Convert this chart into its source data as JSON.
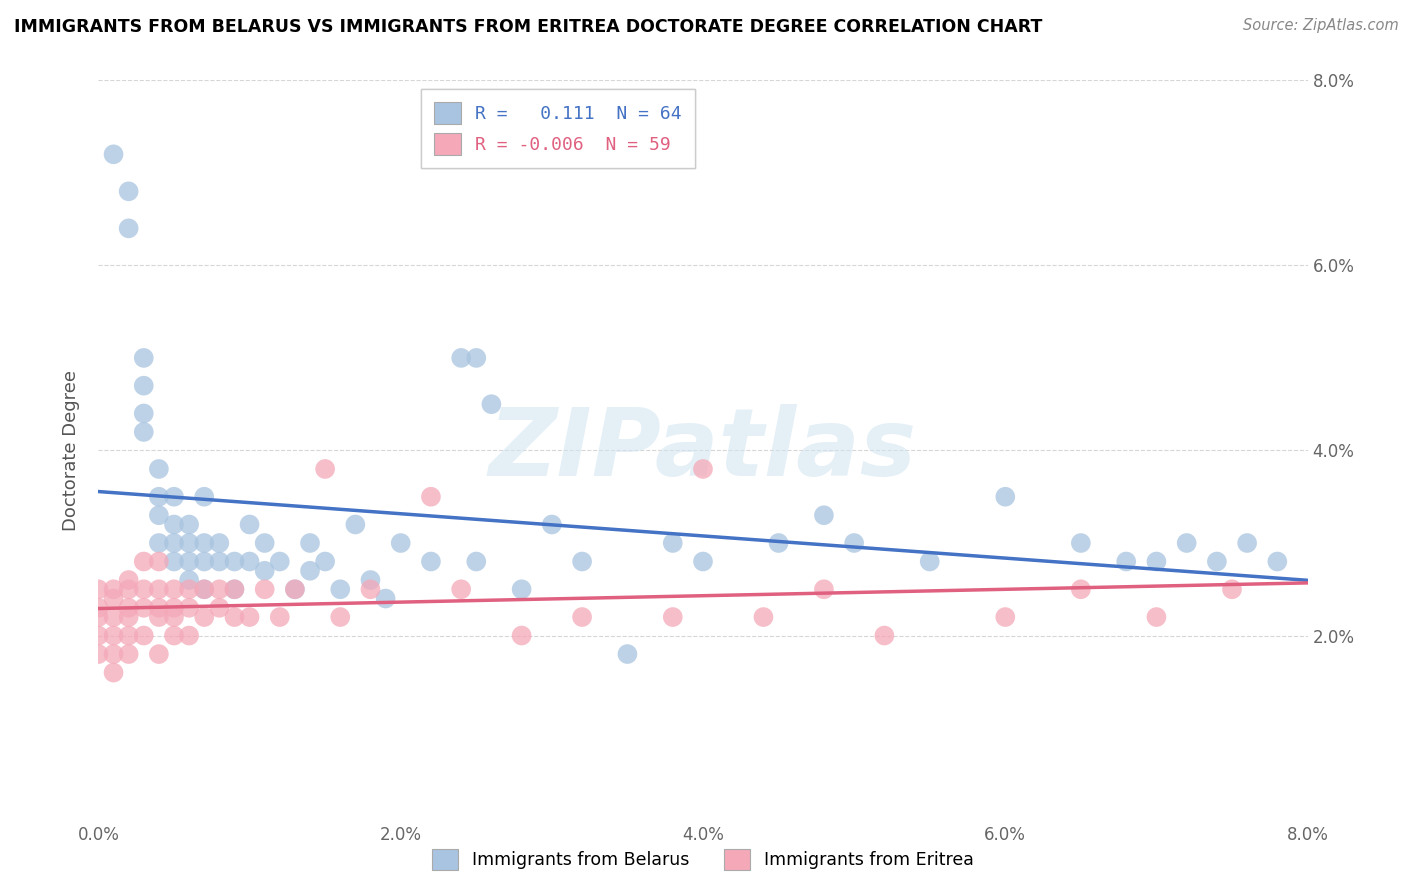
{
  "title": "IMMIGRANTS FROM BELARUS VS IMMIGRANTS FROM ERITREA DOCTORATE DEGREE CORRELATION CHART",
  "source": "Source: ZipAtlas.com",
  "ylabel": "Doctorate Degree",
  "xlim": [
    0.0,
    0.08
  ],
  "ylim": [
    0.0,
    0.08
  ],
  "x_ticks": [
    0.0,
    0.02,
    0.04,
    0.06,
    0.08
  ],
  "y_ticks": [
    0.02,
    0.04,
    0.06,
    0.08
  ],
  "x_tick_labels": [
    "0.0%",
    "2.0%",
    "4.0%",
    "6.0%",
    "8.0%"
  ],
  "y_tick_labels": [
    "2.0%",
    "4.0%",
    "6.0%",
    "8.0%"
  ],
  "legend1_R": "0.111",
  "legend1_N": "64",
  "legend2_R": "-0.006",
  "legend2_N": "59",
  "legend_bottom_label1": "Immigrants from Belarus",
  "legend_bottom_label2": "Immigrants from Eritrea",
  "color_blue": "#a8c4e0",
  "color_pink": "#f4a8b8",
  "line_color_blue": "#4472c4",
  "line_color_pink": "#e06080",
  "watermark_text": "ZIPatlas",
  "belarus_x": [
    0.001,
    0.002,
    0.002,
    0.003,
    0.003,
    0.003,
    0.003,
    0.004,
    0.004,
    0.004,
    0.004,
    0.005,
    0.005,
    0.005,
    0.005,
    0.006,
    0.006,
    0.006,
    0.006,
    0.007,
    0.007,
    0.007,
    0.007,
    0.008,
    0.008,
    0.009,
    0.009,
    0.01,
    0.01,
    0.011,
    0.011,
    0.012,
    0.013,
    0.014,
    0.014,
    0.015,
    0.016,
    0.017,
    0.018,
    0.019,
    0.02,
    0.022,
    0.024,
    0.025,
    0.025,
    0.026,
    0.028,
    0.03,
    0.032,
    0.035,
    0.038,
    0.04,
    0.045,
    0.048,
    0.05,
    0.055,
    0.06,
    0.065,
    0.068,
    0.07,
    0.072,
    0.074,
    0.076,
    0.078
  ],
  "belarus_y": [
    0.072,
    0.068,
    0.064,
    0.05,
    0.047,
    0.044,
    0.042,
    0.038,
    0.035,
    0.033,
    0.03,
    0.035,
    0.032,
    0.03,
    0.028,
    0.032,
    0.03,
    0.028,
    0.026,
    0.035,
    0.03,
    0.028,
    0.025,
    0.03,
    0.028,
    0.028,
    0.025,
    0.032,
    0.028,
    0.03,
    0.027,
    0.028,
    0.025,
    0.03,
    0.027,
    0.028,
    0.025,
    0.032,
    0.026,
    0.024,
    0.03,
    0.028,
    0.05,
    0.028,
    0.05,
    0.045,
    0.025,
    0.032,
    0.028,
    0.018,
    0.03,
    0.028,
    0.03,
    0.033,
    0.03,
    0.028,
    0.035,
    0.03,
    0.028,
    0.028,
    0.03,
    0.028,
    0.03,
    0.028
  ],
  "eritrea_x": [
    0.0,
    0.0,
    0.0,
    0.0,
    0.0,
    0.001,
    0.001,
    0.001,
    0.001,
    0.001,
    0.001,
    0.002,
    0.002,
    0.002,
    0.002,
    0.002,
    0.002,
    0.003,
    0.003,
    0.003,
    0.003,
    0.004,
    0.004,
    0.004,
    0.004,
    0.004,
    0.005,
    0.005,
    0.005,
    0.005,
    0.006,
    0.006,
    0.006,
    0.007,
    0.007,
    0.008,
    0.008,
    0.009,
    0.009,
    0.01,
    0.011,
    0.012,
    0.013,
    0.015,
    0.016,
    0.018,
    0.022,
    0.024,
    0.028,
    0.032,
    0.038,
    0.04,
    0.044,
    0.048,
    0.052,
    0.06,
    0.065,
    0.07,
    0.075
  ],
  "eritrea_y": [
    0.025,
    0.023,
    0.022,
    0.02,
    0.018,
    0.025,
    0.024,
    0.022,
    0.02,
    0.018,
    0.016,
    0.026,
    0.025,
    0.023,
    0.022,
    0.02,
    0.018,
    0.028,
    0.025,
    0.023,
    0.02,
    0.028,
    0.025,
    0.023,
    0.022,
    0.018,
    0.025,
    0.023,
    0.022,
    0.02,
    0.025,
    0.023,
    0.02,
    0.025,
    0.022,
    0.025,
    0.023,
    0.022,
    0.025,
    0.022,
    0.025,
    0.022,
    0.025,
    0.038,
    0.022,
    0.025,
    0.035,
    0.025,
    0.02,
    0.022,
    0.022,
    0.038,
    0.022,
    0.025,
    0.02,
    0.022,
    0.025,
    0.022,
    0.025
  ]
}
